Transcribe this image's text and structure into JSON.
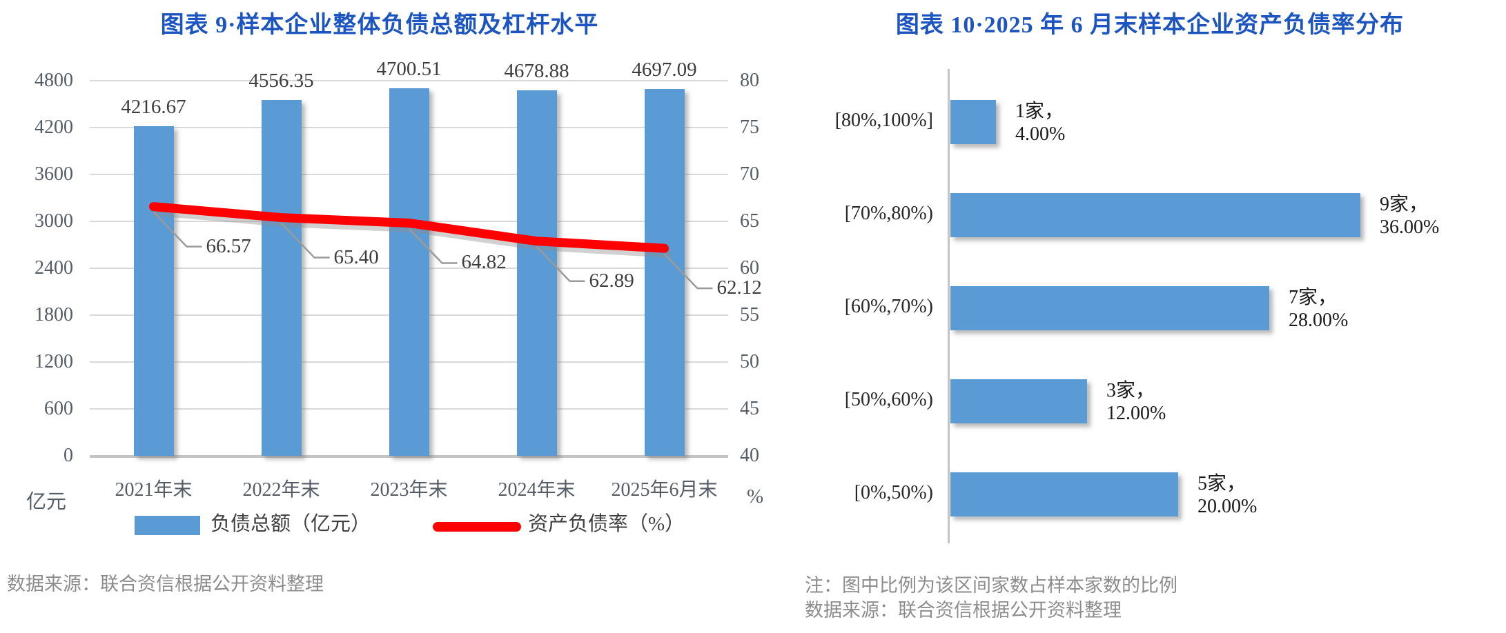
{
  "colors": {
    "bar_blue": "#5B9BD5",
    "line_red": "#FF0000",
    "title_blue": "#1C54C0",
    "axis_text": "#545c66",
    "value_text": "#3d3d3d",
    "gridline": "#D9D9D9",
    "axis_line": "#C4C4C4",
    "leader_gray": "#9a9a9a",
    "source_text": "#8C8C8C"
  },
  "chart_data": [
    {
      "type": "bar",
      "subtype": "vertical-bars-with-line",
      "title": "图表 9·样本企业整体负债总额及杠杆水平",
      "categories": [
        "2021年末",
        "2022年末",
        "2023年末",
        "2024年末",
        "2025年6月末"
      ],
      "series": [
        {
          "name": "负债总额（亿元）",
          "type": "bar",
          "axis": "left",
          "values": [
            4216.67,
            4556.35,
            4700.51,
            4678.88,
            4697.09
          ],
          "labels": [
            "4216.67",
            "4556.35",
            "4700.51",
            "4678.88",
            "4697.09"
          ]
        },
        {
          "name": "资产负债率（%）",
          "type": "line",
          "axis": "right",
          "values": [
            66.57,
            65.4,
            64.82,
            62.89,
            62.12
          ],
          "labels": [
            "66.57",
            "65.40",
            "64.82",
            "62.89",
            "62.12"
          ]
        }
      ],
      "left_axis": {
        "min": 0,
        "max": 4800,
        "step": 600,
        "unit": "亿元",
        "ticks": [
          "4800",
          "4200",
          "3600",
          "3000",
          "2400",
          "1800",
          "1200",
          "600",
          "0"
        ]
      },
      "right_axis": {
        "min": 40,
        "max": 80,
        "step": 5,
        "unit": "%",
        "ticks": [
          "80",
          "75",
          "70",
          "65",
          "60",
          "55",
          "50",
          "45",
          "40"
        ]
      },
      "grid": "horizontal",
      "legend_position": "bottom",
      "source": "数据来源：联合资信根据公开资料整理"
    },
    {
      "type": "bar",
      "subtype": "horizontal-bars",
      "title": "图表 10·2025 年 6 月末样本企业资产负债率分布",
      "categories": [
        "[80%,100%]",
        "[70%,80%)",
        "[60%,70%)",
        "[50%,60%)",
        "[0%,50%)"
      ],
      "values": [
        4,
        36,
        28,
        12,
        20
      ],
      "counts": [
        1,
        9,
        7,
        3,
        5
      ],
      "value_labels": [
        [
          "1家，",
          "4.00%"
        ],
        [
          "9家，",
          "36.00%"
        ],
        [
          "7家，",
          "28.00%"
        ],
        [
          "3家，",
          "12.00%"
        ],
        [
          "5家，",
          "20.00%"
        ]
      ],
      "xlim": [
        0,
        40
      ],
      "grid": "off",
      "note": "注：图中比例为该区间家数占样本家数的比例",
      "source": "数据来源：联合资信根据公开资料整理"
    }
  ]
}
